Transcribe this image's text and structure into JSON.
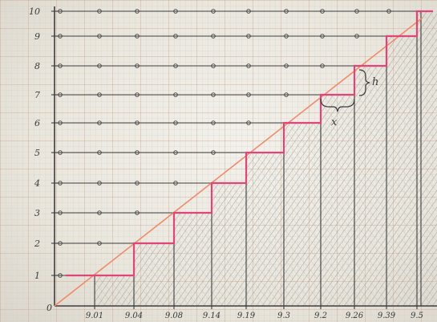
{
  "y_labels": [
    "1",
    "2",
    "3",
    "4",
    "5",
    "6",
    "7",
    "8",
    "9",
    "10"
  ],
  "x_labels": [
    "9.01",
    "9.04",
    "9.08",
    "9.14",
    "9.19",
    "9.3",
    "9.2",
    "9.26",
    "9.39",
    "9.5"
  ],
  "annotations": {
    "x": "x",
    "h": "h"
  },
  "colors": {
    "paper": "#efece4",
    "grid_minor": "#d8c9b6",
    "grid_major": "#c9a68a",
    "ink": "#3d3d3d",
    "staircase": "#e0457a",
    "diagonal": "#f08a6a",
    "shading": "#8f8f8f"
  }
}
